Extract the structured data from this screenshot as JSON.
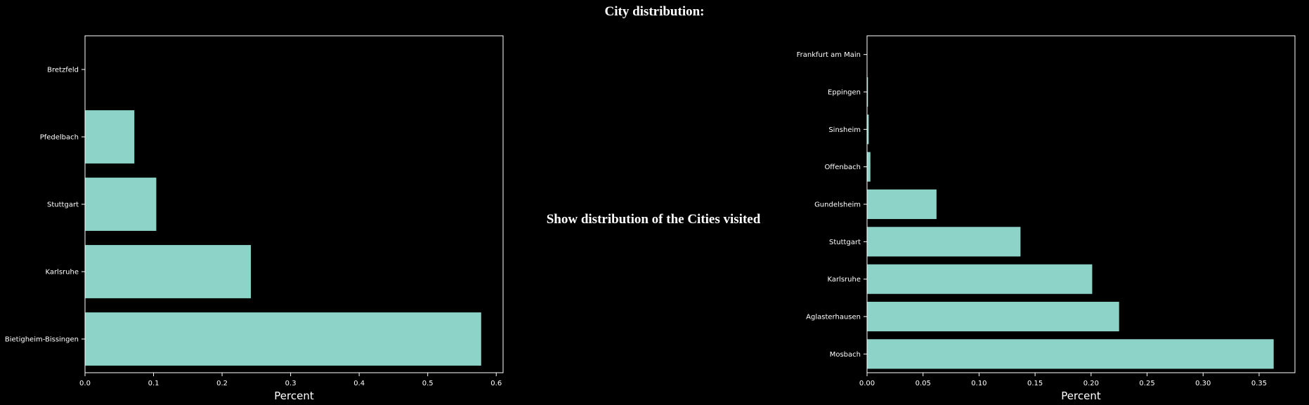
{
  "page": {
    "title": "City distribution:",
    "caption": "Show distribution of the Cities visited"
  },
  "colors": {
    "background": "#000000",
    "bar": "#8dd3c7",
    "axis": "#ffffff",
    "text": "#ffffff"
  },
  "chart_data": [
    {
      "type": "bar",
      "orientation": "horizontal",
      "categories": [
        "Bietigheim-Bissingen",
        "Karlsruhe",
        "Stuttgart",
        "Pfedelbach",
        "Bretzfeld"
      ],
      "values": [
        0.578,
        0.242,
        0.104,
        0.072,
        0.0
      ],
      "xlabel": "Percent",
      "ylabel": "",
      "xlim": [
        0,
        0.61
      ],
      "xticks": [
        0.0,
        0.1,
        0.2,
        0.3,
        0.4,
        0.5,
        0.6
      ],
      "xtick_labels": [
        "0.0",
        "0.1",
        "0.2",
        "0.3",
        "0.4",
        "0.5",
        "0.6"
      ],
      "grid": false
    },
    {
      "type": "bar",
      "orientation": "horizontal",
      "categories": [
        "Mosbach",
        "Aglasterhausen",
        "Karlsruhe",
        "Stuttgart",
        "Gundelsheim",
        "Offenbach",
        "Sinsheim",
        "Eppingen",
        "Frankfurt am Main"
      ],
      "values": [
        0.363,
        0.225,
        0.201,
        0.137,
        0.062,
        0.003,
        0.0015,
        0.0008,
        0.0003
      ],
      "xlabel": "Percent",
      "ylabel": "",
      "xlim": [
        0,
        0.382
      ],
      "xticks": [
        0.0,
        0.05,
        0.1,
        0.15,
        0.2,
        0.25,
        0.3,
        0.35
      ],
      "xtick_labels": [
        "0.00",
        "0.05",
        "0.10",
        "0.15",
        "0.20",
        "0.25",
        "0.30",
        "0.35"
      ],
      "grid": false
    }
  ]
}
